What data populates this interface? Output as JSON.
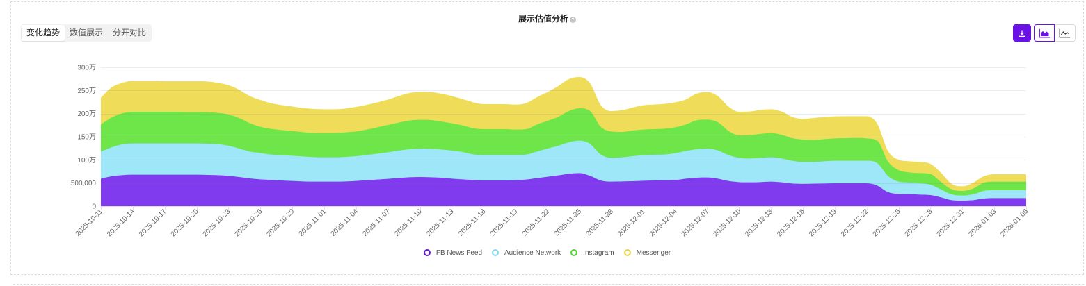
{
  "card": {
    "title": "展示估值分析",
    "help_icon": "question-circle-icon"
  },
  "tabs": [
    {
      "label": "变化趋势",
      "active": true
    },
    {
      "label": "数值展示",
      "active": false
    },
    {
      "label": "分开对比",
      "active": false
    }
  ],
  "toolbar": {
    "download_icon": "download-icon",
    "area_chart_icon": "area-chart-icon",
    "line_chart_icon": "line-chart-icon",
    "active_view": "area",
    "accent_color": "#6a11e5"
  },
  "chart_data": {
    "type": "area",
    "stacked": true,
    "smooth": true,
    "title": "展示估值分析",
    "xlabel": "",
    "ylabel": "",
    "ylim": [
      0,
      3000000
    ],
    "yticks": [
      0,
      500000,
      1000000,
      1500000,
      2000000,
      2500000,
      3000000
    ],
    "ytick_labels": [
      "0",
      "500,000",
      "100万",
      "150万",
      "200万",
      "250万",
      "300万"
    ],
    "xtick_interval": 3,
    "grid": true,
    "legend_position": "bottom",
    "categories": [
      "2025-10-11",
      "2025-10-12",
      "2025-10-13",
      "2025-10-14",
      "2025-10-15",
      "2025-10-16",
      "2025-10-17",
      "2025-10-18",
      "2025-10-19",
      "2025-10-20",
      "2025-10-21",
      "2025-10-22",
      "2025-10-23",
      "2025-10-24",
      "2025-10-25",
      "2025-10-26",
      "2025-10-27",
      "2025-10-28",
      "2025-10-29",
      "2025-10-30",
      "2025-10-31",
      "2025-11-01",
      "2025-11-02",
      "2025-11-03",
      "2025-11-04",
      "2025-11-05",
      "2025-11-06",
      "2025-11-07",
      "2025-11-08",
      "2025-11-09",
      "2025-11-10",
      "2025-11-11",
      "2025-11-12",
      "2025-11-13",
      "2025-11-14",
      "2025-11-15",
      "2025-11-16",
      "2025-11-17",
      "2025-11-18",
      "2025-11-19",
      "2025-11-20",
      "2025-11-21",
      "2025-11-22",
      "2025-11-23",
      "2025-11-24",
      "2025-11-25",
      "2025-11-26",
      "2025-11-27",
      "2025-11-28",
      "2025-11-29",
      "2025-11-30",
      "2025-12-01",
      "2025-12-02",
      "2025-12-03",
      "2025-12-04",
      "2025-12-05",
      "2025-12-06",
      "2025-12-07",
      "2025-12-08",
      "2025-12-09",
      "2025-12-10",
      "2025-12-11",
      "2025-12-12",
      "2025-12-13",
      "2025-12-14",
      "2025-12-15",
      "2025-12-16",
      "2025-12-17",
      "2025-12-18",
      "2025-12-19",
      "2025-12-20",
      "2025-12-21",
      "2025-12-22",
      "2025-12-23",
      "2025-12-24",
      "2025-12-25",
      "2025-12-26",
      "2025-12-27",
      "2025-12-28",
      "2025-12-29",
      "2025-12-30",
      "2025-12-31",
      "2026-01-01",
      "2026-01-02",
      "2026-01-03",
      "2026-01-04",
      "2026-01-05",
      "2026-01-06"
    ],
    "series": [
      {
        "name": "FB News Feed",
        "color": "#6a16d8",
        "fill": "#813bee",
        "values": [
          595000,
          645000,
          670000,
          680000,
          680000,
          680000,
          680000,
          680000,
          680000,
          680000,
          675000,
          670000,
          655000,
          630000,
          600000,
          580000,
          565000,
          555000,
          545000,
          535000,
          530000,
          530000,
          530000,
          535000,
          545000,
          560000,
          575000,
          590000,
          610000,
          625000,
          630000,
          625000,
          615000,
          595000,
          580000,
          565000,
          555000,
          555000,
          555000,
          560000,
          575000,
          605000,
          635000,
          665000,
          700000,
          715000,
          655000,
          555000,
          530000,
          535000,
          540000,
          550000,
          555000,
          560000,
          565000,
          595000,
          615000,
          620000,
          595000,
          545000,
          520000,
          515000,
          520000,
          530000,
          515000,
          490000,
          480000,
          485000,
          490000,
          495000,
          495000,
          495000,
          495000,
          445000,
          305000,
          265000,
          260000,
          250000,
          240000,
          190000,
          130000,
          120000,
          130000,
          165000,
          175000,
          175000,
          175000,
          175000
        ]
      },
      {
        "name": "Audience Network",
        "color": "#7fd9f5",
        "fill": "#9ee7f8",
        "values": [
          585000,
          625000,
          665000,
          675000,
          675000,
          675000,
          675000,
          675000,
          675000,
          675000,
          675000,
          670000,
          650000,
          615000,
          580000,
          570000,
          550000,
          545000,
          545000,
          540000,
          530000,
          525000,
          525000,
          530000,
          535000,
          545000,
          560000,
          575000,
          590000,
          605000,
          615000,
          615000,
          610000,
          605000,
          590000,
          555000,
          550000,
          550000,
          550000,
          545000,
          540000,
          575000,
          610000,
          640000,
          680000,
          700000,
          690000,
          560000,
          515000,
          520000,
          540000,
          550000,
          555000,
          555000,
          580000,
          595000,
          615000,
          625000,
          610000,
          560000,
          525000,
          515000,
          520000,
          525000,
          515000,
          490000,
          475000,
          470000,
          480000,
          485000,
          485000,
          485000,
          485000,
          485000,
          350000,
          265000,
          250000,
          245000,
          225000,
          170000,
          125000,
          110000,
          125000,
          165000,
          170000,
          170000,
          170000,
          170000
        ]
      },
      {
        "name": "Instagram",
        "color": "#4ed62a",
        "fill": "#6ee649",
        "values": [
          585000,
          645000,
          670000,
          685000,
          685000,
          685000,
          685000,
          685000,
          680000,
          680000,
          680000,
          675000,
          675000,
          660000,
          615000,
          565000,
          555000,
          545000,
          535000,
          525000,
          525000,
          525000,
          525000,
          530000,
          535000,
          550000,
          570000,
          590000,
          605000,
          620000,
          620000,
          620000,
          605000,
          590000,
          575000,
          565000,
          560000,
          560000,
          560000,
          550000,
          550000,
          585000,
          600000,
          625000,
          675000,
          700000,
          710000,
          600000,
          570000,
          550000,
          555000,
          555000,
          555000,
          560000,
          560000,
          575000,
          625000,
          625000,
          610000,
          525000,
          485000,
          505000,
          520000,
          525000,
          515000,
          490000,
          485000,
          475000,
          480000,
          485000,
          490000,
          495000,
          485000,
          485000,
          315000,
          250000,
          220000,
          220000,
          230000,
          160000,
          110000,
          100000,
          125000,
          175000,
          185000,
          185000,
          185000,
          185000
        ]
      },
      {
        "name": "Messenger",
        "color": "#ecd13b",
        "fill": "#efdd59",
        "values": [
          580000,
          650000,
          660000,
          665000,
          665000,
          665000,
          660000,
          660000,
          665000,
          665000,
          665000,
          650000,
          635000,
          610000,
          585000,
          580000,
          555000,
          540000,
          530000,
          520000,
          515000,
          515000,
          515000,
          515000,
          530000,
          535000,
          540000,
          550000,
          575000,
          595000,
          605000,
          605000,
          600000,
          590000,
          570000,
          560000,
          540000,
          540000,
          540000,
          540000,
          565000,
          590000,
          620000,
          665000,
          690000,
          675000,
          600000,
          470000,
          440000,
          470000,
          495000,
          525000,
          530000,
          535000,
          540000,
          540000,
          575000,
          600000,
          565000,
          525000,
          510000,
          510000,
          520000,
          515000,
          500000,
          460000,
          445000,
          475000,
          475000,
          475000,
          475000,
          470000,
          480000,
          365000,
          225000,
          225000,
          240000,
          240000,
          220000,
          200000,
          115000,
          100000,
          125000,
          140000,
          160000,
          160000,
          160000,
          160000
        ]
      }
    ]
  }
}
